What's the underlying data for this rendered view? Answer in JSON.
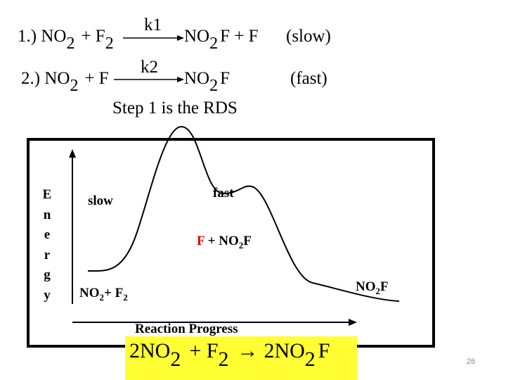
{
  "reaction_1": {
    "parts": [
      "1.) NO",
      "2",
      "+ F",
      "2",
      "NO",
      "2",
      "F + F"
    ],
    "rate_constant": "k1",
    "speed": "(slow)"
  },
  "reaction_2": {
    "parts": [
      "2.) NO",
      "2",
      "+ F",
      "NO",
      "2",
      "F"
    ],
    "rate_constant": "k2",
    "speed": "(fast)"
  },
  "note": "Step 1 is the RDS",
  "diagram": {
    "y_axis_letters": [
      "E",
      "n",
      "e",
      "r",
      "g",
      "y"
    ],
    "x_axis_label": "Reaction Progress",
    "step_1_label": "slow",
    "step_2_label": "fast",
    "reactants": [
      "NO",
      "2",
      "+ F",
      "2"
    ],
    "intermediate": [
      "F",
      "+ NO",
      "2",
      "F"
    ],
    "products": [
      "NO",
      "2",
      "F"
    ]
  },
  "overall": [
    "2NO",
    "2",
    "+ F",
    "2",
    "→",
    "2NO",
    "2",
    "F"
  ],
  "page_number": "26"
}
